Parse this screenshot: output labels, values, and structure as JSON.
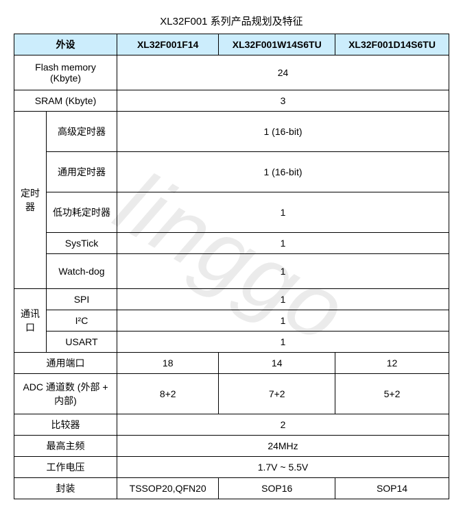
{
  "title": "XL32F001 系列产品规划及特征",
  "watermark": "linggo",
  "header": {
    "peripheral": "外设",
    "col1": "XL32F001F14",
    "col2": "XL32F001W14S6TU",
    "col3": "XL32F001D14S6TU"
  },
  "rows": {
    "flash_label": "Flash memory (Kbyte)",
    "flash_val": "24",
    "sram_label": "SRAM (Kbyte)",
    "sram_val": "3",
    "timer_group": "定时器",
    "adv_timer": "高级定时器",
    "adv_timer_val": "1 (16-bit)",
    "gen_timer": "通用定时器",
    "gen_timer_val": "1 (16-bit)",
    "lp_timer": "低功耗定时器",
    "lp_timer_val": "1",
    "systick": "SysTick",
    "systick_val": "1",
    "watchdog": "Watch-dog",
    "watchdog_val": "1",
    "comm_group": "通讯口",
    "spi": "SPI",
    "spi_val": "1",
    "i2c": "I²C",
    "i2c_val": "1",
    "usart": "USART",
    "usart_val": "1",
    "gpio": "通用端口",
    "gpio_v1": "18",
    "gpio_v2": "14",
    "gpio_v3": "12",
    "adc": "ADC 通道数 (外部 + 内部)",
    "adc_v1": "8+2",
    "adc_v2": "7+2",
    "adc_v3": "5+2",
    "comparator": "比较器",
    "comparator_val": "2",
    "freq": "最高主频",
    "freq_val": "24MHz",
    "voltage": "工作电压",
    "voltage_val": "1.7V ~ 5.5V",
    "package": "封装",
    "package_v1": "TSSOP20,QFN20",
    "package_v2": "SOP16",
    "package_v3": "SOP14"
  },
  "colors": {
    "header_bg": "#ccedfc",
    "border": "#000000",
    "watermark_color": "rgba(0,0,0,0.08)"
  }
}
